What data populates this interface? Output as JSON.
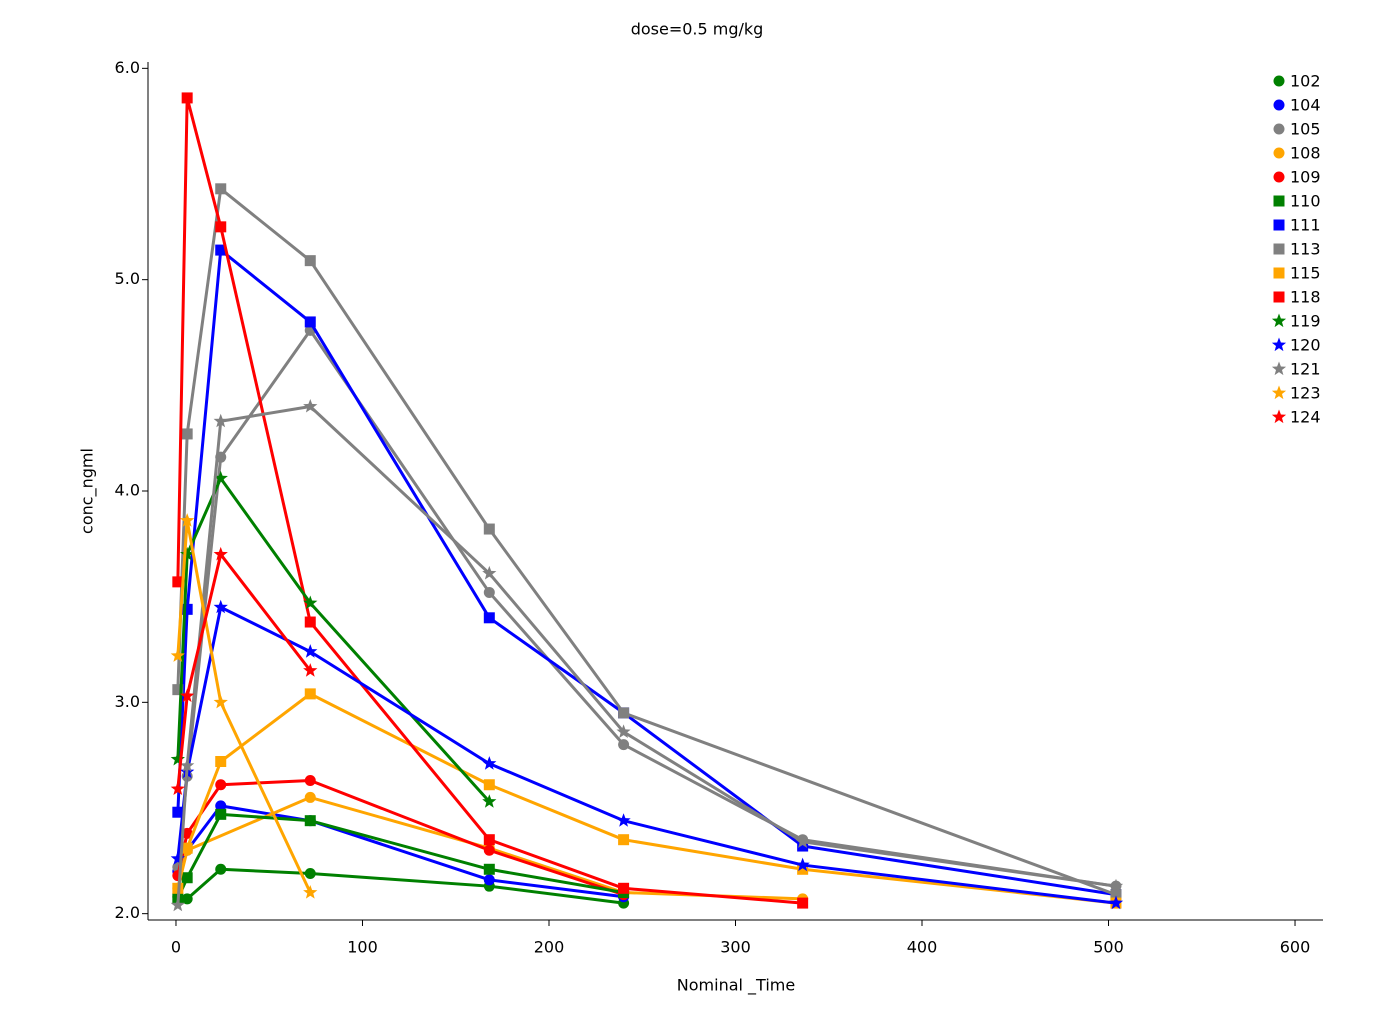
{
  "chart_data": {
    "type": "line",
    "title": "dose=0.5 mg/kg",
    "x_label": "Nominal _Time",
    "y_label": "conc_ngml",
    "xlim": [
      -15,
      615
    ],
    "ylim": [
      1.97,
      6.03
    ],
    "xticks": [
      0,
      100,
      200,
      300,
      400,
      500,
      600
    ],
    "yticks": [
      {
        "value": 2,
        "label": "2.0"
      },
      {
        "value": 3,
        "label": "3.0"
      },
      {
        "value": 4,
        "label": "4.0"
      },
      {
        "value": 5,
        "label": "5.0"
      },
      {
        "value": 6,
        "label": "6.0"
      }
    ],
    "legend": "top-right",
    "series": [
      {
        "name": "102",
        "color": "#008000",
        "marker": "circle",
        "x": [
          1,
          6,
          24,
          72,
          168,
          240
        ],
        "values": [
          2.08,
          2.07,
          2.21,
          2.19,
          2.13,
          2.05
        ]
      },
      {
        "name": "104",
        "color": "#0000ff",
        "marker": "circle",
        "x": [
          1,
          6,
          24,
          72,
          168,
          240
        ],
        "values": [
          2.2,
          2.3,
          2.51,
          2.44,
          2.16,
          2.08
        ]
      },
      {
        "name": "105",
        "color": "#808080",
        "marker": "circle",
        "x": [
          1,
          6,
          24,
          72,
          168,
          240,
          336,
          504
        ],
        "values": [
          2.22,
          2.65,
          4.16,
          4.76,
          3.52,
          2.8,
          2.35,
          2.13
        ]
      },
      {
        "name": "108",
        "color": "#ffa500",
        "marker": "circle",
        "x": [
          1,
          6,
          72,
          168,
          240,
          336
        ],
        "values": [
          2.12,
          2.3,
          2.55,
          2.31,
          2.1,
          2.07
        ]
      },
      {
        "name": "109",
        "color": "#ff0000",
        "marker": "circle",
        "x": [
          1,
          6,
          24,
          72,
          168,
          240
        ],
        "values": [
          2.18,
          2.38,
          2.61,
          2.63,
          2.3,
          2.09
        ]
      },
      {
        "name": "110",
        "color": "#008000",
        "marker": "square",
        "x": [
          1,
          6,
          24,
          72,
          168,
          240
        ],
        "values": [
          2.07,
          2.17,
          2.47,
          2.44,
          2.21,
          2.1
        ]
      },
      {
        "name": "111",
        "color": "#0000ff",
        "marker": "square",
        "x": [
          1,
          6,
          24,
          72,
          168,
          240,
          336,
          504
        ],
        "values": [
          2.48,
          3.44,
          5.14,
          4.8,
          3.4,
          2.95,
          2.32,
          2.09
        ]
      },
      {
        "name": "113",
        "color": "#808080",
        "marker": "square",
        "x": [
          1,
          6,
          24,
          72,
          168,
          240,
          504
        ],
        "values": [
          3.06,
          4.27,
          5.43,
          5.09,
          3.82,
          2.95,
          2.09
        ]
      },
      {
        "name": "115",
        "color": "#ffa500",
        "marker": "square",
        "x": [
          1,
          6,
          24,
          72,
          168,
          240,
          336,
          504
        ],
        "values": [
          2.12,
          2.31,
          2.72,
          3.04,
          2.61,
          2.35,
          2.21,
          2.05
        ]
      },
      {
        "name": "118",
        "color": "#ff0000",
        "marker": "square",
        "x": [
          1,
          6,
          24,
          72,
          168,
          240,
          336
        ],
        "values": [
          3.57,
          5.86,
          5.25,
          3.38,
          2.35,
          2.12,
          2.05
        ]
      },
      {
        "name": "119",
        "color": "#008000",
        "marker": "star",
        "x": [
          1,
          6,
          24,
          72,
          168
        ],
        "values": [
          2.73,
          3.7,
          4.06,
          3.47,
          2.53
        ]
      },
      {
        "name": "120",
        "color": "#0000ff",
        "marker": "star",
        "x": [
          1,
          6,
          24,
          72,
          168,
          240,
          336,
          504
        ],
        "values": [
          2.26,
          2.67,
          3.45,
          3.24,
          2.71,
          2.44,
          2.23,
          2.05
        ]
      },
      {
        "name": "121",
        "color": "#808080",
        "marker": "star",
        "x": [
          1,
          6,
          24,
          72,
          168,
          240,
          336,
          504
        ],
        "values": [
          2.04,
          2.7,
          4.33,
          4.4,
          3.61,
          2.86,
          2.34,
          2.13
        ]
      },
      {
        "name": "123",
        "color": "#ffa500",
        "marker": "star",
        "x": [
          1,
          6,
          24,
          72
        ],
        "values": [
          3.22,
          3.86,
          3.0,
          2.1
        ]
      },
      {
        "name": "124",
        "color": "#ff0000",
        "marker": "star",
        "x": [
          1,
          6,
          24,
          72
        ],
        "values": [
          2.59,
          3.03,
          3.7,
          3.15
        ]
      }
    ]
  }
}
